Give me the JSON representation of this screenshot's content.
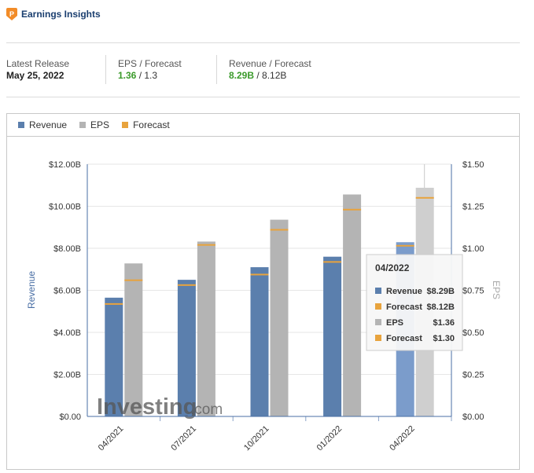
{
  "header": {
    "title": "Earnings Insights"
  },
  "summary": {
    "latest_release": {
      "label": "Latest Release",
      "value": "May 25, 2022"
    },
    "eps": {
      "label": "EPS / Forecast",
      "actual": "1.36",
      "forecast": " / 1.3"
    },
    "revenue": {
      "label": "Revenue / Forecast",
      "actual": "8.29B",
      "forecast": " / 8.12B"
    }
  },
  "legend": [
    {
      "label": "Revenue",
      "color": "#5b7fad"
    },
    {
      "label": "EPS",
      "color": "#b4b4b4"
    },
    {
      "label": "Forecast",
      "color": "#e8a33d"
    }
  ],
  "colors": {
    "revenue": "#5b7fad",
    "eps": "#b4b4b4",
    "forecast": "#e8a33d",
    "revenue_hover": "#7b9ccb",
    "eps_hover": "#cfcfcf",
    "axis": "#4a6fa5"
  },
  "watermark": {
    "brand": "Investing",
    "suffix": ".com"
  },
  "tooltip": {
    "title": "04/2022",
    "rows": [
      {
        "label": "Revenue",
        "value": "$8.29B",
        "color": "#5b7fad"
      },
      {
        "label": "Forecast",
        "value": "$8.12B",
        "color": "#e8a33d"
      },
      {
        "label": "EPS",
        "value": "$1.36",
        "color": "#b4b4b4"
      },
      {
        "label": "Forecast",
        "value": "$1.30",
        "color": "#e8a33d"
      }
    ]
  },
  "chart_data": {
    "type": "bar",
    "categories": [
      "04/2021",
      "07/2021",
      "10/2021",
      "01/2022",
      "04/2022"
    ],
    "series": [
      {
        "name": "Revenue",
        "axis": "left",
        "values": [
          5.65,
          6.5,
          7.1,
          7.6,
          8.29
        ]
      },
      {
        "name": "EPS",
        "axis": "right",
        "values": [
          0.91,
          1.04,
          1.17,
          1.32,
          1.36
        ]
      }
    ],
    "forecasts": {
      "revenue": [
        5.35,
        6.25,
        6.75,
        7.35,
        8.12
      ],
      "eps": [
        0.81,
        1.02,
        1.11,
        1.23,
        1.3
      ]
    },
    "ylabel": "Revenue",
    "y2label": "EPS",
    "ylim": [
      0,
      12
    ],
    "y2lim": [
      0,
      1.5
    ],
    "yticks": [
      "$0.00",
      "$2.00B",
      "$4.00B",
      "$6.00B",
      "$8.00B",
      "$10.00B",
      "$12.00B"
    ],
    "y2ticks": [
      "$0.00",
      "$0.25",
      "$0.50",
      "$0.75",
      "$1.00",
      "$1.25",
      "$1.50"
    ],
    "grid": true,
    "highlighted": "04/2022"
  }
}
